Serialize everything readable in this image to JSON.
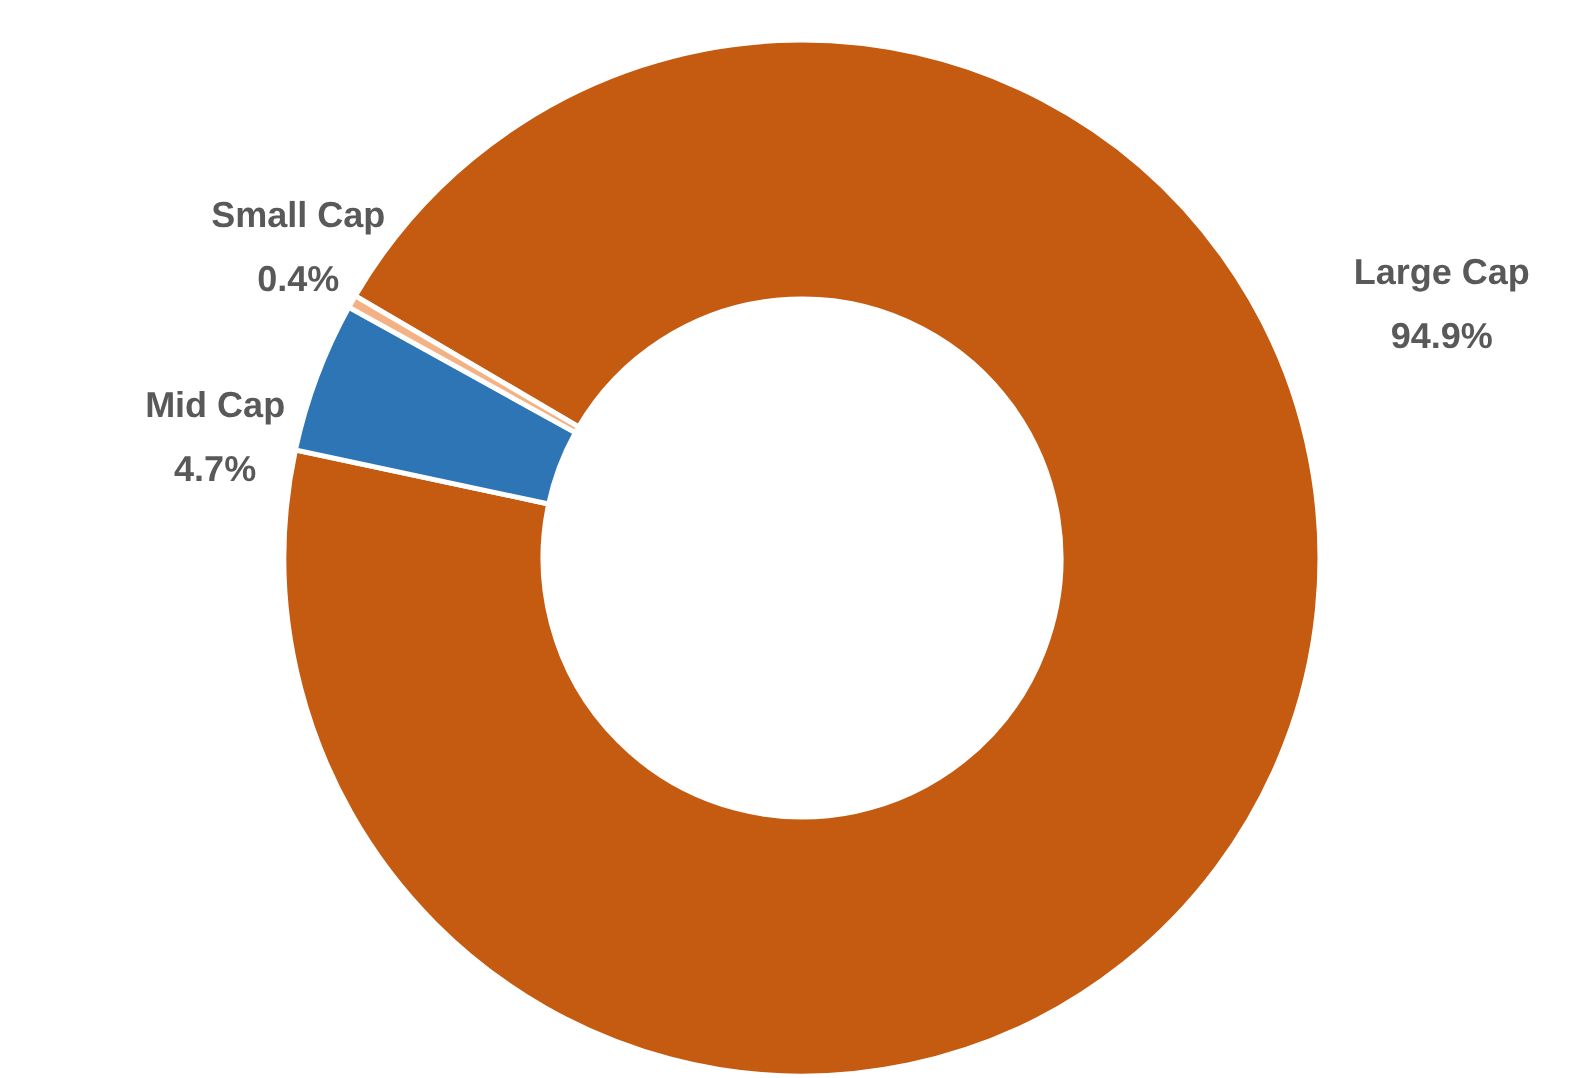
{
  "chart_data": {
    "type": "donut",
    "categories": [
      "Large Cap",
      "Mid Cap",
      "Small Cap"
    ],
    "values": [
      94.9,
      4.7,
      0.4
    ],
    "colors": [
      "#c55a11",
      "#2e75b6",
      "#f4b183"
    ],
    "value_labels": [
      "94.9%",
      "4.7%",
      "0.4%"
    ],
    "legend": false
  }
}
